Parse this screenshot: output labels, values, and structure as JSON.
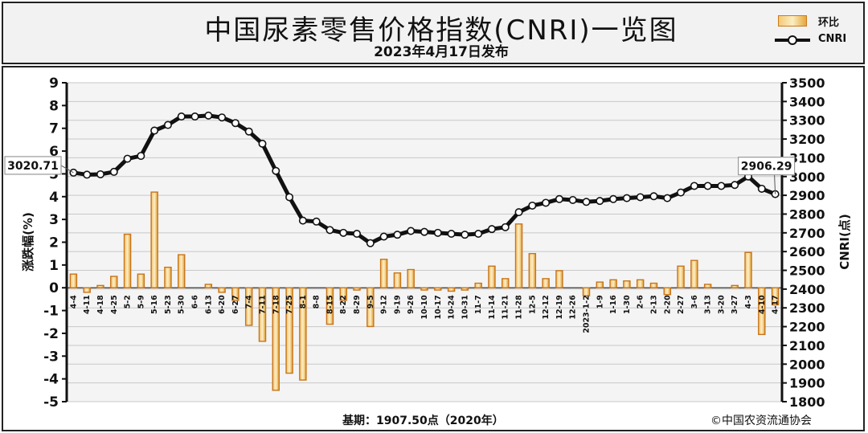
{
  "header": {
    "title": "中国尿素零售价格指数(CNRI)一览图",
    "subtitle": "2023年4月17日发布"
  },
  "legend": {
    "bar_label": "环比",
    "line_label": "CNRI"
  },
  "footer": {
    "base": "基期：1907.50点（2020年）",
    "copyright": "©中国农资流通协会"
  },
  "chart_data": {
    "type": "bar+line",
    "x_labels": [
      "4-4",
      "4-11",
      "4-18",
      "4-25",
      "5-2",
      "5-9",
      "5-16",
      "5-23",
      "5-30",
      "6-6",
      "6-13",
      "6-20",
      "6-27",
      "7-4",
      "7-11",
      "7-18",
      "7-25",
      "8-1",
      "8-8",
      "8-15",
      "8-22",
      "8-29",
      "9-5",
      "9-12",
      "9-19",
      "9-26",
      "10-10",
      "10-17",
      "10-24",
      "10-31",
      "11-7",
      "11-14",
      "11-21",
      "11-28",
      "12-5",
      "12-12",
      "12-19",
      "12-26",
      "2023-1-2",
      "1-9",
      "1-16",
      "1-30",
      "2-6",
      "2-13",
      "2-20",
      "2-27",
      "3-6",
      "3-13",
      "3-20",
      "3-27",
      "4-3",
      "4-10",
      "4-17"
    ],
    "series": [
      {
        "name": "环比",
        "type": "bar",
        "axis": "left",
        "values": [
          0.6,
          -0.2,
          0.1,
          0.5,
          2.35,
          0.6,
          4.2,
          0.9,
          1.45,
          0.0,
          0.15,
          -0.2,
          -0.55,
          -1.65,
          -2.35,
          -4.5,
          -3.75,
          -4.05,
          0.0,
          -1.6,
          -0.55,
          -0.1,
          -1.7,
          1.25,
          0.65,
          0.8,
          -0.1,
          -0.1,
          -0.15,
          -0.1,
          0.2,
          0.95,
          0.4,
          2.8,
          1.5,
          0.4,
          0.75,
          0.0,
          -0.35,
          0.25,
          0.35,
          0.3,
          0.35,
          0.2,
          -0.3,
          0.95,
          1.2,
          0.15,
          0.0,
          0.1,
          1.55,
          -2.05,
          -0.75
        ]
      },
      {
        "name": "CNRI",
        "type": "line",
        "axis": "right",
        "values": [
          3020.71,
          3010,
          3012,
          3025,
          3095,
          3110,
          3245,
          3275,
          3320,
          3320,
          3325,
          3315,
          3285,
          3240,
          3175,
          3030,
          2890,
          2765,
          2760,
          2715,
          2700,
          2695,
          2645,
          2680,
          2690,
          2710,
          2705,
          2700,
          2695,
          2690,
          2695,
          2720,
          2730,
          2810,
          2845,
          2860,
          2880,
          2875,
          2865,
          2870,
          2880,
          2885,
          2890,
          2895,
          2885,
          2915,
          2950,
          2950,
          2950,
          2955,
          3000,
          2935,
          2906.29
        ]
      }
    ],
    "left_axis": {
      "label": "涨跌幅(%)",
      "min": -5,
      "max": 9,
      "ticks": [
        9,
        8,
        7,
        6,
        5,
        4,
        3,
        2,
        1,
        0,
        -1,
        -2,
        -3,
        -4,
        -5
      ]
    },
    "right_axis": {
      "label": "CNRI(点)",
      "min": 1800,
      "max": 3500,
      "ticks": [
        3500,
        3400,
        3300,
        3200,
        3100,
        3000,
        2900,
        2800,
        2700,
        2600,
        2500,
        2400,
        2300,
        2200,
        2100,
        2000,
        1900,
        1800
      ]
    },
    "annotations": [
      {
        "text": "3020.71",
        "point_index": 0
      },
      {
        "text": "2906.29",
        "point_index": 52
      }
    ],
    "grid": true,
    "legend_position": "top-right",
    "colors": {
      "bar_fill": "#f5cf83",
      "bar_edge": "#c8741a",
      "line": "#111111",
      "marker_fill": "#ffffff"
    }
  }
}
